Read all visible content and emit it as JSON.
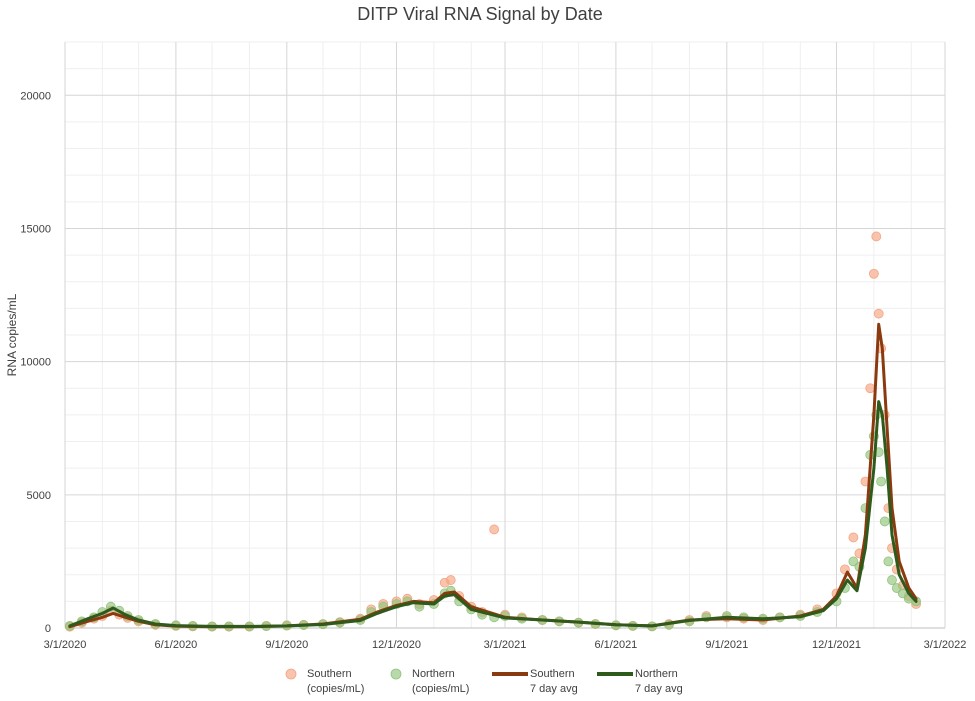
{
  "chart_data": {
    "type": "scatter",
    "title": "DITP Viral RNA Signal by Date",
    "xlabel": "",
    "ylabel": "RNA copies/mL",
    "x_ticks": [
      "3/1/2020",
      "6/1/2020",
      "9/1/2020",
      "12/1/2020",
      "3/1/2021",
      "6/1/2021",
      "9/1/2021",
      "12/1/2021",
      "3/1/2022"
    ],
    "y_ticks": [
      "0",
      "5000",
      "10000",
      "15000",
      "20000"
    ],
    "xlim": [
      "2020-03-01",
      "2022-03-01"
    ],
    "ylim": [
      0,
      22000
    ],
    "grid": true,
    "legend_position": "bottom",
    "colors": {
      "southern": "#f4a582",
      "northern": "#92c47d",
      "southern_avg": "#8b3a0f",
      "northern_avg": "#2e5a1c"
    },
    "legend": [
      {
        "line1": "Southern",
        "line2": "(copies/mL)",
        "marker": "circle",
        "series": "southern"
      },
      {
        "line1": "Northern",
        "line2": "(copies/mL)",
        "marker": "circle",
        "series": "northern"
      },
      {
        "line1": "Southern",
        "line2": "7 day avg",
        "marker": "line",
        "series": "southern_avg"
      },
      {
        "line1": "Northern",
        "line2": "7 day avg",
        "marker": "line",
        "series": "northern_avg"
      }
    ],
    "series": [
      {
        "name": "Southern (copies/mL)",
        "key": "southern",
        "mode": "points",
        "x": [
          "2020-03-05",
          "2020-03-15",
          "2020-03-25",
          "2020-04-01",
          "2020-04-08",
          "2020-04-15",
          "2020-04-22",
          "2020-05-01",
          "2020-05-15",
          "2020-06-01",
          "2020-06-15",
          "2020-07-01",
          "2020-07-15",
          "2020-08-01",
          "2020-08-15",
          "2020-09-01",
          "2020-09-15",
          "2020-10-01",
          "2020-10-15",
          "2020-11-01",
          "2020-11-10",
          "2020-11-20",
          "2020-12-01",
          "2020-12-10",
          "2020-12-20",
          "2021-01-01",
          "2021-01-10",
          "2021-01-15",
          "2021-01-22",
          "2021-02-01",
          "2021-02-10",
          "2021-02-20",
          "2021-03-01",
          "2021-03-15",
          "2021-04-01",
          "2021-04-15",
          "2021-05-01",
          "2021-05-15",
          "2021-06-01",
          "2021-06-15",
          "2021-07-01",
          "2021-07-15",
          "2021-08-01",
          "2021-08-15",
          "2021-09-01",
          "2021-09-15",
          "2021-10-01",
          "2021-10-15",
          "2021-11-01",
          "2021-11-15",
          "2021-12-01",
          "2021-12-08",
          "2021-12-15",
          "2021-12-20",
          "2021-12-25",
          "2021-12-29",
          "2022-01-01",
          "2022-01-03",
          "2022-01-05",
          "2022-01-07",
          "2022-01-10",
          "2022-01-13",
          "2022-01-16",
          "2022-01-20",
          "2022-01-25",
          "2022-01-30",
          "2022-02-05"
        ],
        "y": [
          50,
          200,
          350,
          450,
          650,
          500,
          380,
          250,
          120,
          80,
          60,
          50,
          50,
          50,
          80,
          100,
          120,
          150,
          220,
          350,
          700,
          900,
          1000,
          1100,
          900,
          1050,
          1700,
          1800,
          1200,
          800,
          600,
          3700,
          500,
          400,
          300,
          250,
          200,
          150,
          100,
          80,
          60,
          150,
          300,
          450,
          400,
          350,
          300,
          400,
          500,
          700,
          1300,
          2200,
          3400,
          2800,
          5500,
          9000,
          13300,
          14700,
          11800,
          10500,
          8000,
          4500,
          3000,
          2200,
          1600,
          1200,
          900
        ]
      },
      {
        "name": "Northern (copies/mL)",
        "key": "northern",
        "mode": "points",
        "x": [
          "2020-03-05",
          "2020-03-15",
          "2020-03-25",
          "2020-04-01",
          "2020-04-08",
          "2020-04-15",
          "2020-04-22",
          "2020-05-01",
          "2020-05-15",
          "2020-06-01",
          "2020-06-15",
          "2020-07-01",
          "2020-07-15",
          "2020-08-01",
          "2020-08-15",
          "2020-09-01",
          "2020-09-15",
          "2020-10-01",
          "2020-10-15",
          "2020-11-01",
          "2020-11-10",
          "2020-11-20",
          "2020-12-01",
          "2020-12-10",
          "2020-12-20",
          "2021-01-01",
          "2021-01-10",
          "2021-01-15",
          "2021-01-22",
          "2021-02-01",
          "2021-02-10",
          "2021-02-20",
          "2021-03-01",
          "2021-03-15",
          "2021-04-01",
          "2021-04-15",
          "2021-05-01",
          "2021-05-15",
          "2021-06-01",
          "2021-06-15",
          "2021-07-01",
          "2021-07-15",
          "2021-08-01",
          "2021-08-15",
          "2021-09-01",
          "2021-09-15",
          "2021-10-01",
          "2021-10-15",
          "2021-11-01",
          "2021-11-15",
          "2021-12-01",
          "2021-12-08",
          "2021-12-15",
          "2021-12-20",
          "2021-12-25",
          "2021-12-29",
          "2022-01-01",
          "2022-01-03",
          "2022-01-05",
          "2022-01-07",
          "2022-01-10",
          "2022-01-13",
          "2022-01-16",
          "2022-01-20",
          "2022-01-25",
          "2022-01-30",
          "2022-02-05"
        ],
        "y": [
          80,
          250,
          400,
          600,
          800,
          650,
          450,
          300,
          150,
          100,
          80,
          60,
          60,
          60,
          70,
          90,
          110,
          140,
          200,
          300,
          600,
          800,
          900,
          1000,
          800,
          900,
          1300,
          1400,
          1000,
          700,
          500,
          400,
          450,
          350,
          300,
          250,
          200,
          150,
          100,
          80,
          60,
          120,
          250,
          400,
          450,
          400,
          350,
          400,
          450,
          600,
          1000,
          1500,
          2500,
          2300,
          4500,
          6500,
          7200,
          8000,
          6600,
          5500,
          4000,
          2500,
          1800,
          1500,
          1300,
          1100,
          1000
        ]
      },
      {
        "name": "Southern 7 day avg",
        "key": "southern_avg",
        "mode": "line",
        "x": [
          "2020-03-05",
          "2020-03-20",
          "2020-04-01",
          "2020-04-10",
          "2020-04-20",
          "2020-05-01",
          "2020-05-15",
          "2020-06-01",
          "2020-07-01",
          "2020-08-01",
          "2020-09-01",
          "2020-10-01",
          "2020-11-01",
          "2020-11-15",
          "2020-12-01",
          "2020-12-15",
          "2021-01-01",
          "2021-01-10",
          "2021-01-18",
          "2021-02-01",
          "2021-03-01",
          "2021-04-01",
          "2021-05-01",
          "2021-06-01",
          "2021-07-01",
          "2021-08-01",
          "2021-09-01",
          "2021-10-01",
          "2021-11-01",
          "2021-11-20",
          "2021-12-01",
          "2021-12-10",
          "2021-12-18",
          "2021-12-25",
          "2022-01-01",
          "2022-01-05",
          "2022-01-08",
          "2022-01-12",
          "2022-01-16",
          "2022-01-22",
          "2022-01-30",
          "2022-02-05"
        ],
        "y": [
          50,
          250,
          400,
          550,
          400,
          250,
          120,
          70,
          50,
          50,
          80,
          150,
          330,
          600,
          850,
          1000,
          950,
          1300,
          1350,
          800,
          400,
          300,
          220,
          120,
          80,
          300,
          350,
          300,
          450,
          700,
          1200,
          2100,
          1500,
          3500,
          8000,
          11400,
          10500,
          7500,
          4500,
          2500,
          1500,
          1100
        ]
      },
      {
        "name": "Northern 7 day avg",
        "key": "northern_avg",
        "mode": "line",
        "x": [
          "2020-03-05",
          "2020-03-20",
          "2020-04-01",
          "2020-04-10",
          "2020-04-20",
          "2020-05-01",
          "2020-05-15",
          "2020-06-01",
          "2020-07-01",
          "2020-08-01",
          "2020-09-01",
          "2020-10-01",
          "2020-11-01",
          "2020-11-15",
          "2020-12-01",
          "2020-12-15",
          "2021-01-01",
          "2021-01-10",
          "2021-01-18",
          "2021-02-01",
          "2021-03-01",
          "2021-04-01",
          "2021-05-01",
          "2021-06-01",
          "2021-07-01",
          "2021-08-01",
          "2021-09-01",
          "2021-10-01",
          "2021-11-01",
          "2021-11-20",
          "2021-12-01",
          "2021-12-10",
          "2021-12-18",
          "2021-12-25",
          "2022-01-01",
          "2022-01-05",
          "2022-01-08",
          "2022-01-12",
          "2022-01-16",
          "2022-01-22",
          "2022-01-30",
          "2022-02-05"
        ],
        "y": [
          80,
          350,
          550,
          750,
          500,
          300,
          150,
          90,
          60,
          60,
          80,
          130,
          280,
          550,
          800,
          950,
          900,
          1200,
          1250,
          700,
          380,
          300,
          220,
          120,
          80,
          280,
          400,
          350,
          420,
          650,
          1100,
          1800,
          1400,
          3000,
          6000,
          8500,
          8000,
          6000,
          3500,
          2000,
          1300,
          1000
        ]
      }
    ]
  }
}
